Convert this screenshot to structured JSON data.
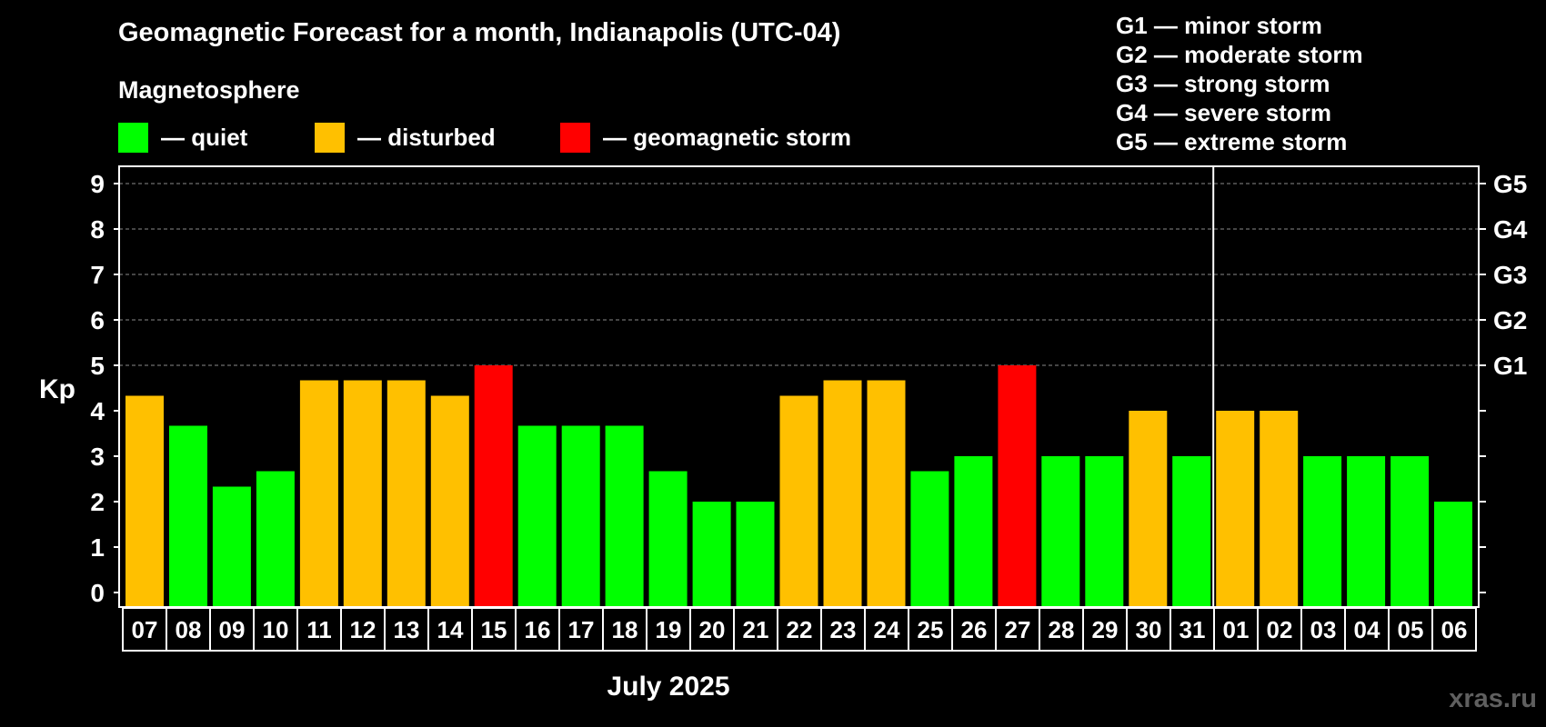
{
  "header": {
    "title": "Geomagnetic Forecast for a month, Indianapolis (UTC-04)",
    "subtitle": "Magnetosphere"
  },
  "legend": {
    "items": [
      {
        "label": "— quiet",
        "color": "#00ff00"
      },
      {
        "label": "— disturbed",
        "color": "#ffc000"
      },
      {
        "label": "— geomagnetic storm",
        "color": "#ff0000"
      }
    ]
  },
  "g_scale": [
    "G1 — minor storm",
    "G2 — moderate storm",
    "G3 — strong storm",
    "G4 — severe storm",
    "G5 — extreme storm"
  ],
  "watermark": "xras.ru",
  "chart_data": {
    "type": "bar",
    "title": "Geomagnetic Forecast for a month, Indianapolis (UTC-04)",
    "xlabel": "July 2025",
    "ylabel": "Kp",
    "ylim": [
      0,
      9
    ],
    "yticks": [
      "0",
      "1",
      "2",
      "3",
      "4",
      "5",
      "6",
      "7",
      "8",
      "9"
    ],
    "right_axis_labels": [
      {
        "kp": 5,
        "label": "G1"
      },
      {
        "kp": 6,
        "label": "G2"
      },
      {
        "kp": 7,
        "label": "G3"
      },
      {
        "kp": 8,
        "label": "G4"
      },
      {
        "kp": 9,
        "label": "G5"
      }
    ],
    "grid": true,
    "month_separator_after": "31",
    "categories": [
      "07",
      "08",
      "09",
      "10",
      "11",
      "12",
      "13",
      "14",
      "15",
      "16",
      "17",
      "18",
      "19",
      "20",
      "21",
      "22",
      "23",
      "24",
      "25",
      "26",
      "27",
      "28",
      "29",
      "30",
      "31",
      "01",
      "02",
      "03",
      "04",
      "05",
      "06"
    ],
    "values": [
      4.33,
      3.67,
      2.33,
      2.67,
      4.67,
      4.67,
      4.67,
      4.33,
      5,
      3.67,
      3.67,
      3.67,
      2.67,
      2,
      2,
      4.33,
      4.67,
      4.67,
      2.67,
      3,
      5,
      3,
      3,
      4,
      3,
      4,
      4,
      3,
      3,
      3,
      2
    ],
    "levels": [
      "disturbed",
      "quiet",
      "quiet",
      "quiet",
      "disturbed",
      "disturbed",
      "disturbed",
      "disturbed",
      "storm",
      "quiet",
      "quiet",
      "quiet",
      "quiet",
      "quiet",
      "quiet",
      "disturbed",
      "disturbed",
      "disturbed",
      "quiet",
      "quiet",
      "storm",
      "quiet",
      "quiet",
      "disturbed",
      "quiet",
      "disturbed",
      "disturbed",
      "quiet",
      "quiet",
      "quiet",
      "quiet"
    ],
    "level_colors": {
      "quiet": "#00ff00",
      "disturbed": "#ffc000",
      "storm": "#ff0000"
    }
  }
}
